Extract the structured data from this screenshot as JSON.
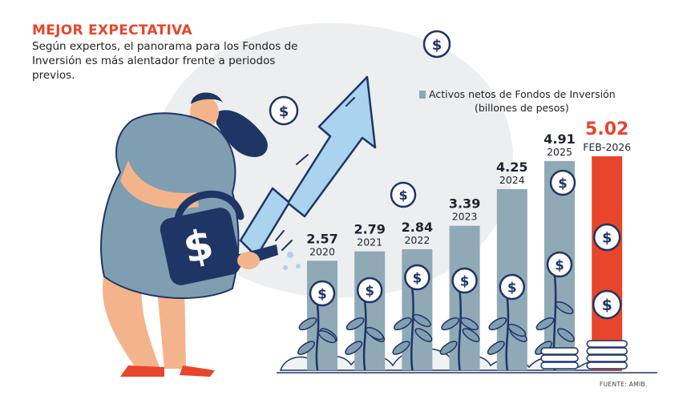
{
  "title": "MEJOR EXPECTATIVA",
  "subtitle": "Según expertos, el panorama para los Fondos de Inversión es más alentador frente a periodos previos.",
  "legend": {
    "line1": "Activos netos de Fondos de Inversión",
    "line2": "(billones de pesos)"
  },
  "source": "FUENTE: AMIB.",
  "icon": {
    "coin": "dollar-coin-icon",
    "plant": "plant-icon",
    "can": "watering-can-icon",
    "arrow": "growth-arrow-icon"
  },
  "colors": {
    "bar": "#8fa9b6",
    "highlight": "#e8452a",
    "text": "#1e2230",
    "arrow": "#a9d3ee",
    "dress": "#7f9eb2",
    "navy": "#1f3565",
    "skin": "#f3b48c",
    "shoes": "#e8452a"
  },
  "chart_data": {
    "type": "bar",
    "categories": [
      "2020",
      "2021",
      "2022",
      "2023",
      "2024",
      "2025",
      "FEB-2026"
    ],
    "values": [
      2.57,
      2.79,
      2.84,
      3.39,
      4.25,
      4.91,
      5.02
    ],
    "value_labels": [
      "2.57",
      "2.79",
      "2.84",
      "3.39",
      "4.25",
      "4.91",
      "5.02"
    ],
    "highlight_index": 6,
    "ylabel": "",
    "xlabel": "",
    "grid": false,
    "legend_position": "top-right"
  }
}
